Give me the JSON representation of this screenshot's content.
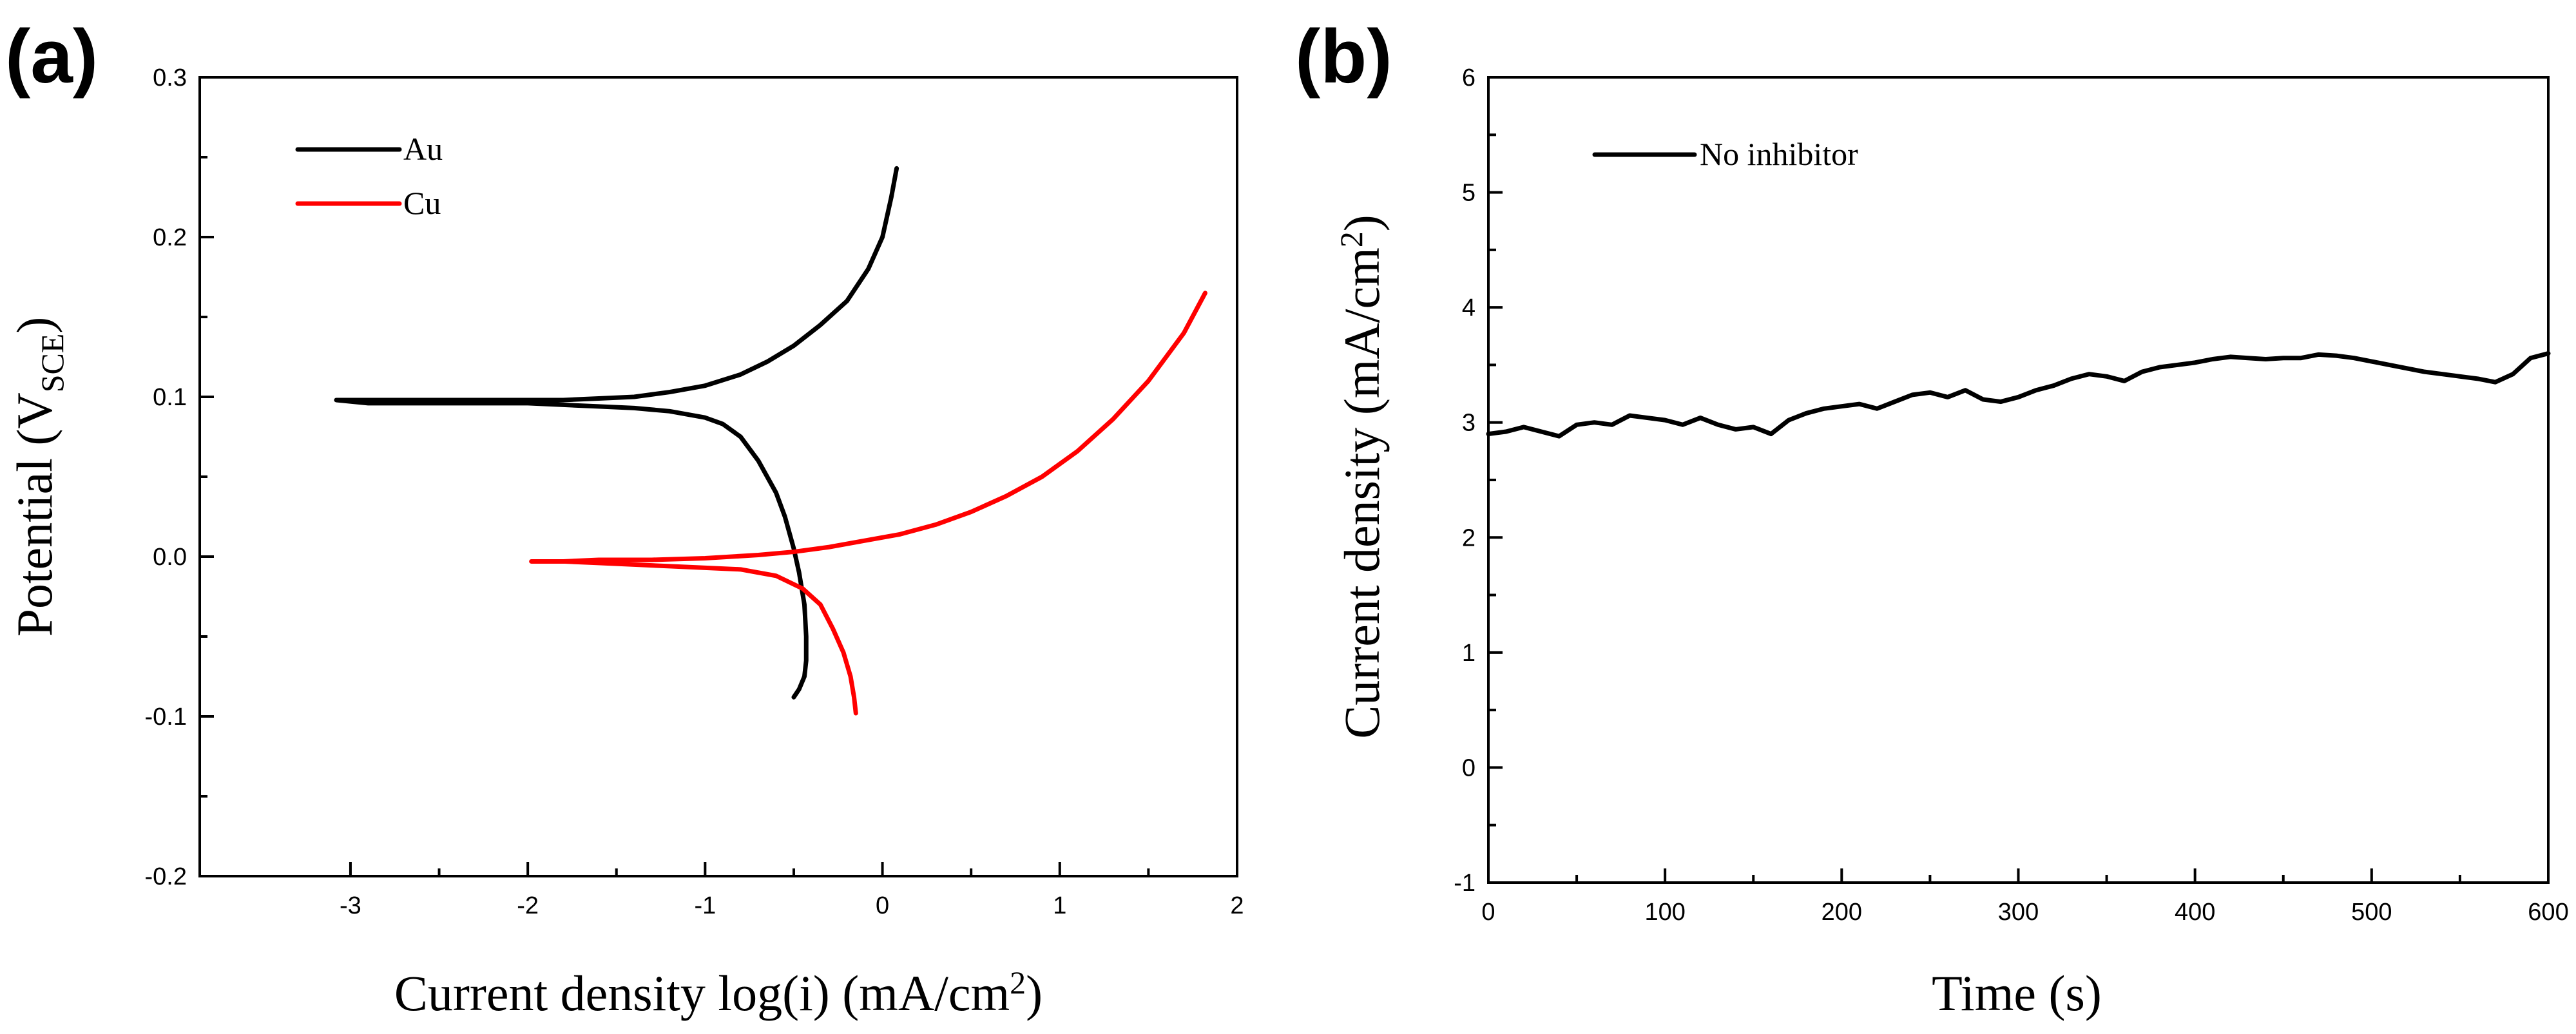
{
  "colors": {
    "au": "#000000",
    "cu": "#ff0000",
    "no_inhibitor": "#000000"
  },
  "chart_data": [
    {
      "panel": "(a)",
      "type": "line",
      "title": "",
      "xlabel_main": "Current density log(i) (mA/cm",
      "xlabel_sup": "2",
      "xlabel_tail": ")",
      "ylabel_main": "Potential (V",
      "ylabel_sub": "SCE",
      "ylabel_tail": ")",
      "xlim": [
        -3.85,
        2.0
      ],
      "ylim": [
        -0.2,
        0.3
      ],
      "xticks": [
        -3,
        -2,
        -1,
        0,
        1,
        2
      ],
      "yticks": [
        -0.2,
        -0.1,
        0.0,
        0.1,
        0.2,
        0.3
      ],
      "yticklabels": [
        "-0.2",
        "-0.1",
        "0.0",
        "0.1",
        "0.2",
        "0.3"
      ],
      "legend_position": "top-left",
      "series": [
        {
          "name": "Au",
          "color": "#000000",
          "x": [
            0.08,
            0.05,
            0.0,
            -0.08,
            -0.2,
            -0.35,
            -0.5,
            -0.65,
            -0.8,
            -1.0,
            -1.2,
            -1.4,
            -1.6,
            -1.8,
            -2.0,
            -2.3,
            -2.6,
            -2.9,
            -3.08,
            -2.9,
            -2.6,
            -2.3,
            -2.0,
            -1.8,
            -1.6,
            -1.4,
            -1.2,
            -1.0,
            -0.9,
            -0.8,
            -0.7,
            -0.6,
            -0.55,
            -0.5,
            -0.47,
            -0.44,
            -0.43,
            -0.43,
            -0.44,
            -0.47,
            -0.5
          ],
          "y": [
            0.243,
            0.225,
            0.2,
            0.18,
            0.16,
            0.145,
            0.132,
            0.122,
            0.114,
            0.107,
            0.103,
            0.1,
            0.099,
            0.098,
            0.098,
            0.098,
            0.098,
            0.098,
            0.098,
            0.096,
            0.096,
            0.096,
            0.096,
            0.095,
            0.094,
            0.093,
            0.091,
            0.087,
            0.083,
            0.075,
            0.06,
            0.04,
            0.025,
            0.005,
            -0.01,
            -0.03,
            -0.05,
            -0.065,
            -0.075,
            -0.083,
            -0.088
          ]
        },
        {
          "name": "Cu",
          "color": "#ff0000",
          "x": [
            1.82,
            1.7,
            1.5,
            1.3,
            1.1,
            0.9,
            0.7,
            0.5,
            0.3,
            0.1,
            -0.1,
            -0.3,
            -0.5,
            -0.7,
            -1.0,
            -1.3,
            -1.6,
            -1.8,
            -1.98,
            -1.8,
            -1.6,
            -1.4,
            -1.2,
            -1.0,
            -0.8,
            -0.6,
            -0.45,
            -0.35,
            -0.28,
            -0.22,
            -0.18,
            -0.16,
            -0.15
          ],
          "y": [
            0.165,
            0.14,
            0.11,
            0.086,
            0.066,
            0.05,
            0.038,
            0.028,
            0.02,
            0.014,
            0.01,
            0.006,
            0.003,
            0.001,
            -0.001,
            -0.002,
            -0.002,
            -0.003,
            -0.003,
            -0.003,
            -0.004,
            -0.005,
            -0.006,
            -0.007,
            -0.008,
            -0.012,
            -0.02,
            -0.03,
            -0.045,
            -0.06,
            -0.075,
            -0.088,
            -0.098
          ]
        }
      ]
    },
    {
      "panel": "(b)",
      "type": "line",
      "title": "",
      "xlabel_main": "Time (s)",
      "ylabel_main": "Current density (mA/cm",
      "ylabel_sup": "2",
      "ylabel_tail": ")",
      "xlim": [
        0,
        600
      ],
      "ylim": [
        -1,
        6
      ],
      "xticks": [
        0,
        100,
        200,
        300,
        400,
        500,
        600
      ],
      "yticks": [
        -1,
        0,
        1,
        2,
        3,
        4,
        5,
        6
      ],
      "legend_position": "top-left",
      "series": [
        {
          "name": "No inhibitor",
          "color": "#000000",
          "x": [
            0,
            10,
            20,
            30,
            40,
            50,
            60,
            70,
            80,
            90,
            100,
            110,
            120,
            130,
            140,
            150,
            160,
            170,
            180,
            190,
            200,
            210,
            220,
            230,
            240,
            250,
            260,
            270,
            280,
            290,
            300,
            310,
            320,
            330,
            340,
            350,
            360,
            370,
            380,
            390,
            400,
            410,
            420,
            430,
            440,
            450,
            460,
            470,
            480,
            490,
            500,
            510,
            520,
            530,
            540,
            550,
            560,
            570,
            580,
            590,
            600
          ],
          "y": [
            2.9,
            2.92,
            2.96,
            2.92,
            2.88,
            2.98,
            3.0,
            2.98,
            3.06,
            3.04,
            3.02,
            2.98,
            3.04,
            2.98,
            2.94,
            2.96,
            2.9,
            3.02,
            3.08,
            3.12,
            3.14,
            3.16,
            3.12,
            3.18,
            3.24,
            3.26,
            3.22,
            3.28,
            3.2,
            3.18,
            3.22,
            3.28,
            3.32,
            3.38,
            3.42,
            3.4,
            3.36,
            3.44,
            3.48,
            3.5,
            3.52,
            3.55,
            3.57,
            3.56,
            3.55,
            3.56,
            3.56,
            3.59,
            3.58,
            3.56,
            3.53,
            3.5,
            3.47,
            3.44,
            3.42,
            3.4,
            3.38,
            3.35,
            3.42,
            3.56,
            3.6
          ]
        }
      ]
    }
  ]
}
